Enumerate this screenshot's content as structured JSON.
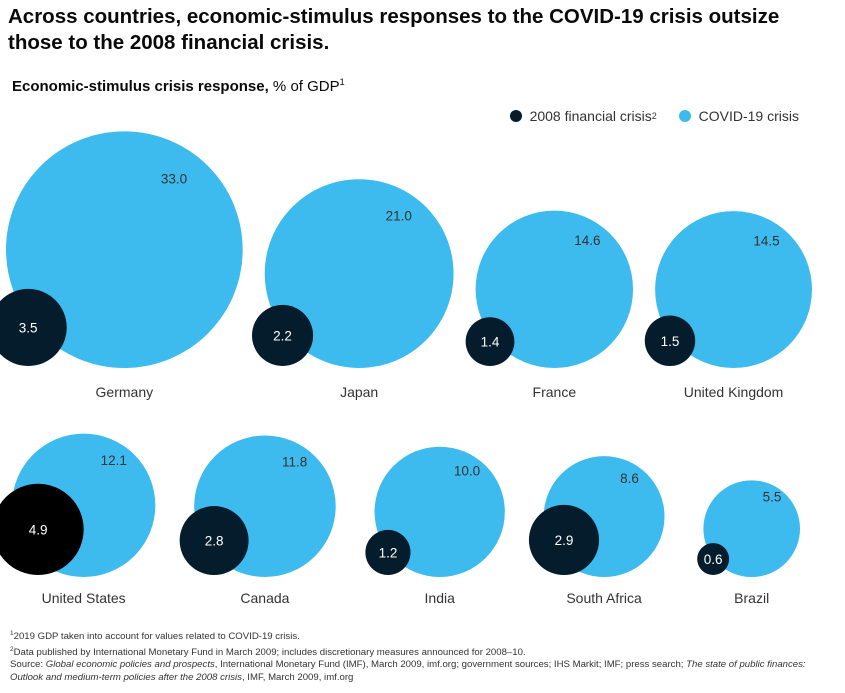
{
  "title": "Across countries, economic-stimulus responses to the COVID-19 crisis outsize those to the 2008 financial crisis.",
  "subtitle": {
    "bold": "Economic-stimulus crisis response,",
    "normal": " % of GDP",
    "sup": "1"
  },
  "legend": [
    {
      "label": "2008 financial crisis",
      "sup": "2",
      "color": "#051c2c"
    },
    {
      "label": "COVID-19 crisis",
      "sup": "",
      "color": "#3dbbef"
    }
  ],
  "colors": {
    "covid": "#3dbbef",
    "crisis2008": "#051c2c",
    "us2008": "#000000",
    "label_dark": "#333333",
    "label_light": "#ffffff"
  },
  "chart_data": {
    "type": "bubble",
    "title": "Economic-stimulus crisis response, % of GDP",
    "unit": "% of GDP",
    "series": [
      {
        "name": "2008 financial crisis",
        "values": [
          3.5,
          2.2,
          1.4,
          1.5,
          4.9,
          2.8,
          1.2,
          2.9,
          0.6
        ]
      },
      {
        "name": "COVID-19 crisis",
        "values": [
          33.0,
          21.0,
          14.6,
          14.5,
          12.1,
          11.8,
          10.0,
          8.6,
          5.5
        ]
      }
    ],
    "countries": [
      {
        "name": "Germany",
        "covid": 33.0,
        "crisis2008": 3.5,
        "covid_label": "33.0",
        "crisis2008_label": "3.5"
      },
      {
        "name": "Japan",
        "covid": 21.0,
        "crisis2008": 2.2,
        "covid_label": "21.0",
        "crisis2008_label": "2.2"
      },
      {
        "name": "France",
        "covid": 14.6,
        "crisis2008": 1.4,
        "covid_label": "14.6",
        "crisis2008_label": "1.4"
      },
      {
        "name": "United Kingdom",
        "covid": 14.5,
        "crisis2008": 1.5,
        "covid_label": "14.5",
        "crisis2008_label": "1.5"
      },
      {
        "name": "United States",
        "covid": 12.1,
        "crisis2008": 4.9,
        "covid_label": "12.1",
        "crisis2008_label": "4.9"
      },
      {
        "name": "Canada",
        "covid": 11.8,
        "crisis2008": 2.8,
        "covid_label": "11.8",
        "crisis2008_label": "2.8"
      },
      {
        "name": "India",
        "covid": 10.0,
        "crisis2008": 1.2,
        "covid_label": "10.0",
        "crisis2008_label": "1.2"
      },
      {
        "name": "South Africa",
        "covid": 8.6,
        "crisis2008": 2.9,
        "covid_label": "8.6",
        "crisis2008_label": "2.9"
      },
      {
        "name": "Brazil",
        "covid": 5.5,
        "crisis2008": 0.6,
        "covid_label": "5.5",
        "crisis2008_label": "0.6"
      }
    ]
  },
  "footnotes": {
    "note1_marker": "1",
    "note1": "2019 GDP taken into account for values related to COVID-19 crisis.",
    "note2_marker": "2",
    "note2": "Data published by International Monetary Fund in March 2009; includes discretionary measures announced for 2008–10.",
    "source_prefix": "Source: ",
    "source_italic_1": "Global economic policies and prospects",
    "source_mid": ", International Monetary Fund (IMF), March 2009, imf.org; government sources; IHS Markit; IMF; press search; ",
    "source_italic_2": "The state of public finances: Outlook and medium-term policies after the 2008 crisis",
    "source_end": ", IMF, March 2009, imf.org"
  }
}
